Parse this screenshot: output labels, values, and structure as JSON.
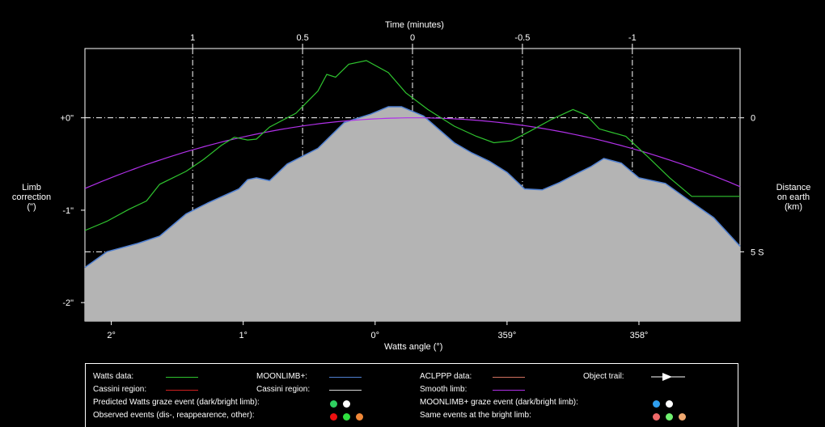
{
  "chart_data": {
    "type": "area",
    "top_axis": {
      "label": "Time (minutes)",
      "ticks": [
        "1",
        "0.5",
        "0",
        "-0.5",
        "-1"
      ]
    },
    "x_axis": {
      "label": "Watts angle (°)",
      "ticks": [
        "2°",
        "1°",
        "0°",
        "359°",
        "358°"
      ]
    },
    "left_axis": {
      "label_lines": [
        "Limb",
        "correction",
        "(\")"
      ],
      "ticks": [
        "+0\"",
        "-1\"",
        "-2\""
      ],
      "ylim": [
        -2.2,
        0.75
      ]
    },
    "right_axis": {
      "label_lines": [
        "Distance",
        "on earth",
        "(km)"
      ],
      "ticks": [
        "0",
        "5 S"
      ]
    },
    "colors": {
      "moonlimb_fill": "#b4b4b4",
      "moonlimb_edge": "#4f7fd0",
      "watts": "#2fc42f",
      "smooth": "#b030e8",
      "grid": "#ffffff"
    },
    "moonlimb_series": [
      [
        0,
        -1.62
      ],
      [
        0.05,
        -1.45
      ],
      [
        0.12,
        -1.36
      ],
      [
        0.17,
        -1.28
      ],
      [
        0.23,
        -1.04
      ],
      [
        0.28,
        -0.92
      ],
      [
        0.35,
        -0.77
      ],
      [
        0.37,
        -0.67
      ],
      [
        0.39,
        -0.65
      ],
      [
        0.42,
        -0.68
      ],
      [
        0.46,
        -0.5
      ],
      [
        0.53,
        -0.33
      ],
      [
        0.59,
        -0.05
      ],
      [
        0.65,
        0.04
      ],
      [
        0.69,
        0.12
      ],
      [
        0.72,
        0.12
      ],
      [
        0.77,
        0.02
      ],
      [
        0.84,
        -0.27
      ],
      [
        0.88,
        -0.38
      ],
      [
        0.92,
        -0.47
      ],
      [
        0.96,
        -0.59
      ],
      [
        1.0,
        -0.77
      ],
      [
        1.04,
        -0.78
      ],
      [
        1.08,
        -0.7
      ],
      [
        1.12,
        -0.6
      ],
      [
        1.15,
        -0.53
      ],
      [
        1.18,
        -0.44
      ],
      [
        1.22,
        -0.49
      ],
      [
        1.26,
        -0.65
      ],
      [
        1.32,
        -0.71
      ],
      [
        1.37,
        -0.88
      ],
      [
        1.43,
        -1.08
      ],
      [
        1.49,
        -1.39
      ]
    ],
    "watts_series": [
      [
        0,
        -1.22
      ],
      [
        0.05,
        -1.12
      ],
      [
        0.1,
        -0.99
      ],
      [
        0.14,
        -0.9
      ],
      [
        0.17,
        -0.72
      ],
      [
        0.23,
        -0.58
      ],
      [
        0.27,
        -0.45
      ],
      [
        0.31,
        -0.3
      ],
      [
        0.34,
        -0.21
      ],
      [
        0.37,
        -0.24
      ],
      [
        0.39,
        -0.23
      ],
      [
        0.42,
        -0.1
      ],
      [
        0.48,
        0.05
      ],
      [
        0.53,
        0.29
      ],
      [
        0.55,
        0.47
      ],
      [
        0.57,
        0.44
      ],
      [
        0.6,
        0.58
      ],
      [
        0.64,
        0.62
      ],
      [
        0.69,
        0.49
      ],
      [
        0.73,
        0.27
      ],
      [
        0.78,
        0.09
      ],
      [
        0.84,
        -0.09
      ],
      [
        0.89,
        -0.2
      ],
      [
        0.93,
        -0.27
      ],
      [
        0.97,
        -0.25
      ],
      [
        1.01,
        -0.15
      ],
      [
        1.06,
        -0.02
      ],
      [
        1.11,
        0.09
      ],
      [
        1.14,
        0.03
      ],
      [
        1.17,
        -0.12
      ],
      [
        1.2,
        -0.16
      ],
      [
        1.23,
        -0.2
      ],
      [
        1.28,
        -0.42
      ],
      [
        1.33,
        -0.65
      ],
      [
        1.38,
        -0.85
      ],
      [
        1.49,
        -0.85
      ]
    ],
    "smooth_limb": {
      "vertex_x": 0.75,
      "peak_y": 0.0,
      "curvature": 1.36
    },
    "reference_level_5S": -1.45
  },
  "legend": {
    "watts_data": "Watts data:",
    "cassini_region_1": "Cassini region:",
    "moonlimb": "MOONLIMB+:",
    "cassini_region_2": "Cassini region:",
    "aclppp": "ACLPPP data:",
    "smooth_limb": "Smooth limb:",
    "object_trail": "Object trail:",
    "predicted_watts": "Predicted Watts graze event (dark/bright limb):",
    "observed_events": "Observed events (dis-, reappearence, other):",
    "moonlimb_graze": "MOONLIMB+ graze event (dark/bright limb):",
    "same_events": "Same events at the bright limb:",
    "colors": {
      "watts": "#2fc42f",
      "cassini1": "#d02020",
      "moonlimb": "#4f7fd0",
      "cassini2": "#d8d8d8",
      "aclppp": "#d07060",
      "smooth": "#b030e8"
    }
  }
}
